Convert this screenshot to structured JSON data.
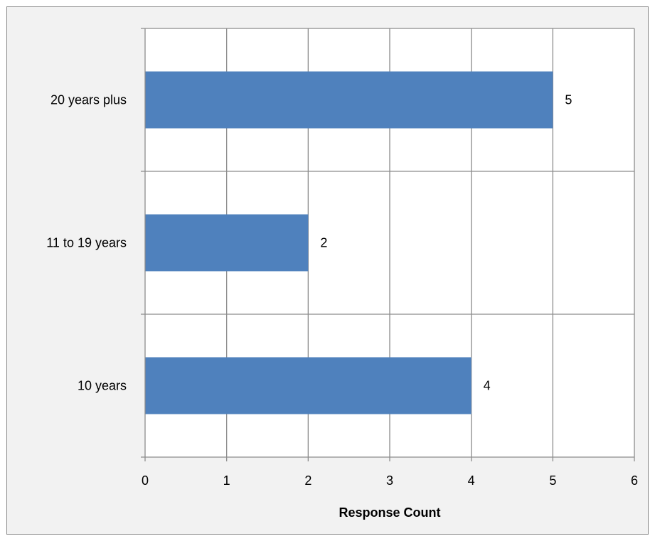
{
  "chart_data": {
    "type": "bar",
    "orientation": "horizontal",
    "categories": [
      "20 years plus",
      "11 to 19 years",
      "10 years"
    ],
    "values": [
      5,
      2,
      4
    ],
    "data_labels": [
      "5",
      "2",
      "4"
    ],
    "title": "",
    "xlabel": "Response Count",
    "ylabel": "",
    "xlim": [
      0,
      6
    ],
    "x_ticks": [
      0,
      1,
      2,
      3,
      4,
      5,
      6
    ],
    "x_tick_labels": [
      "0",
      "1",
      "2",
      "3",
      "4",
      "5",
      "6"
    ],
    "grid": true,
    "legend": "none",
    "colors": {
      "bar": "#4f81bd",
      "grid": "#8c8c8c",
      "plot_background": "#ffffff",
      "chart_background": "#f2f2f2"
    }
  }
}
